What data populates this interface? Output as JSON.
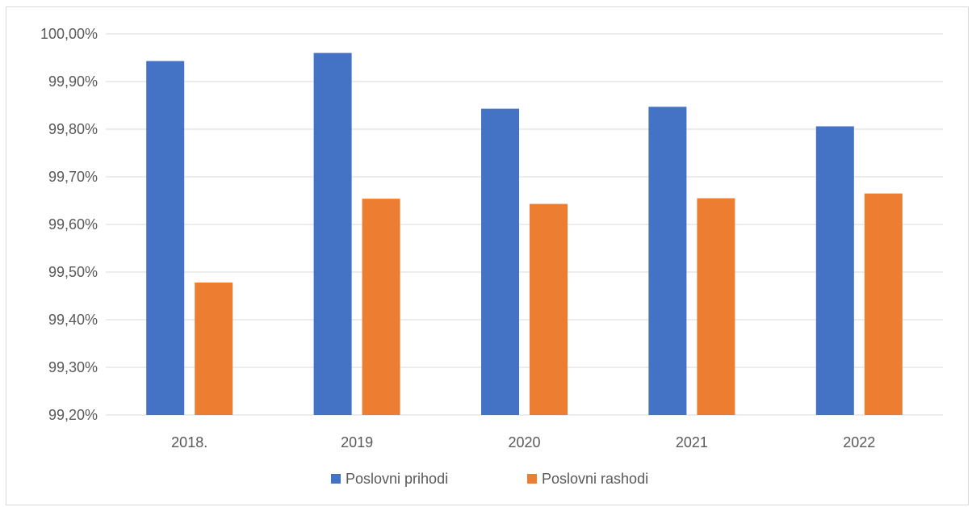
{
  "chart_data": {
    "type": "bar",
    "categories": [
      "2018.",
      "2019",
      "2020",
      "2021",
      "2022"
    ],
    "series": [
      {
        "name": "Poslovni prihodi",
        "color": "#4472C4",
        "values": [
          99.943,
          99.96,
          99.843,
          99.847,
          99.806
        ]
      },
      {
        "name": "Poslovni rashodi",
        "color": "#ED7D31",
        "values": [
          99.478,
          99.654,
          99.643,
          99.655,
          99.665
        ]
      }
    ],
    "ylim": [
      99.2,
      100.0
    ],
    "y_ticks": [
      99.2,
      99.3,
      99.4,
      99.5,
      99.6,
      99.7,
      99.8,
      99.9,
      100.0
    ],
    "y_tick_labels": [
      "99,20%",
      "99,30%",
      "99,40%",
      "99,50%",
      "99,60%",
      "99,70%",
      "99,80%",
      "99,90%",
      "100,00%"
    ],
    "grid": true,
    "gridline_color": "#d9d9d9",
    "legend_position": "bottom"
  }
}
